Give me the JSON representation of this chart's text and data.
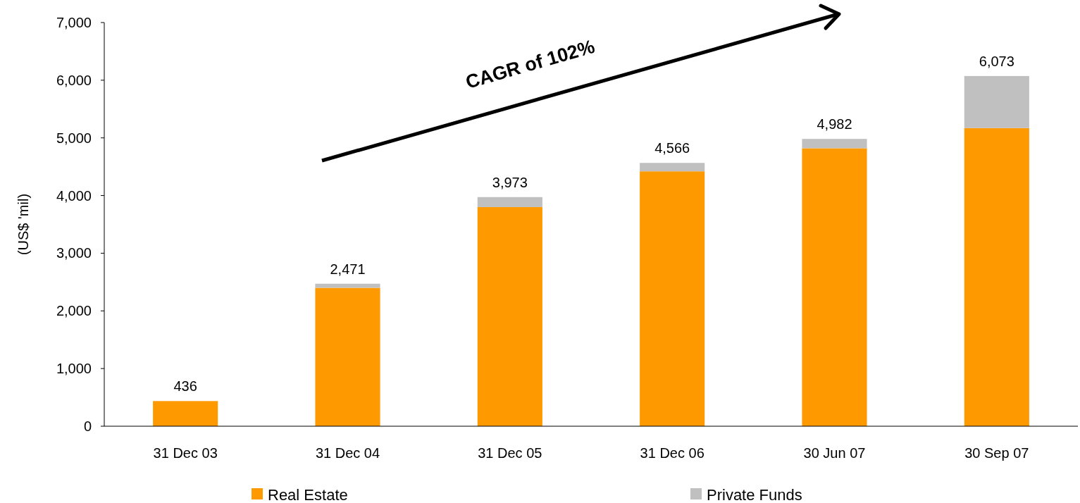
{
  "chart_data": {
    "type": "bar",
    "stacked": true,
    "ylabel": "(US$ 'mil)",
    "categories": [
      "31 Dec 03",
      "31 Dec 04",
      "31 Dec 05",
      "31 Dec 06",
      "30 Jun 07",
      "30 Sep 07"
    ],
    "series": [
      {
        "name": "Real Estate",
        "color": "#ff9900",
        "values": [
          436,
          2400,
          3800,
          4420,
          4820,
          5170
        ]
      },
      {
        "name": "Private Funds",
        "color": "#c0c0c0",
        "values": [
          0,
          71,
          173,
          146,
          162,
          903
        ]
      }
    ],
    "totals": [
      "436",
      "2,471",
      "3,973",
      "4,566",
      "4,982",
      "6,073"
    ],
    "ylim": [
      0,
      7000
    ],
    "yticks": [
      {
        "value": 0,
        "label": "0"
      },
      {
        "value": 1000,
        "label": "1,000"
      },
      {
        "value": 2000,
        "label": "2,000"
      },
      {
        "value": 3000,
        "label": "3,000"
      },
      {
        "value": 4000,
        "label": "4,000"
      },
      {
        "value": 5000,
        "label": "5,000"
      },
      {
        "value": 6000,
        "label": "6,000"
      },
      {
        "value": 7000,
        "label": "7,000"
      }
    ],
    "annotations": [
      "CAGR of 102%"
    ],
    "legend": "bottom",
    "grid": false
  }
}
